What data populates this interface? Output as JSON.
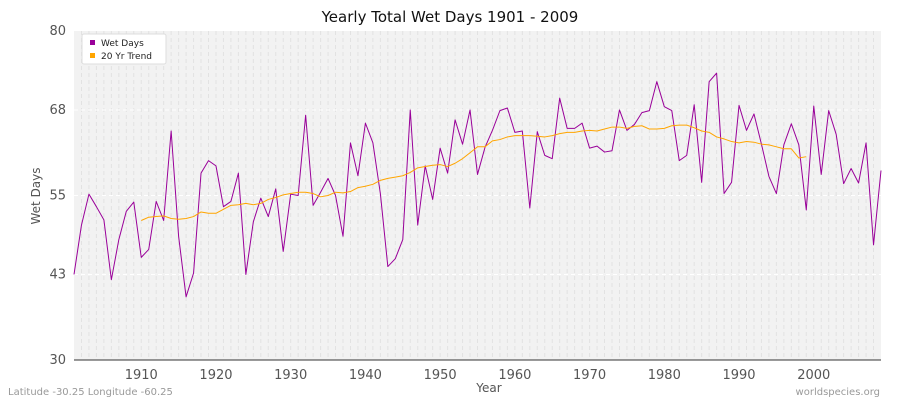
{
  "chart_data": {
    "type": "line",
    "title": "Yearly Total Wet Days 1901 - 2009",
    "xlabel": "Year",
    "ylabel": "Wet Days",
    "xlim": [
      1901,
      2009
    ],
    "ylim": [
      30,
      80
    ],
    "yticks": [
      30,
      43,
      55,
      68,
      80
    ],
    "xticks": [
      1910,
      1920,
      1930,
      1940,
      1950,
      1960,
      1970,
      1980,
      1990,
      2000
    ],
    "legend": "top-left",
    "series": [
      {
        "name": "Wet Days",
        "color": "#990099",
        "x_start": 1901,
        "values": [
          43,
          50.5,
          55.2,
          53.3,
          51.3,
          42.2,
          48.3,
          52.6,
          54,
          45.6,
          46.8,
          54.1,
          51.2,
          64.8,
          48.8,
          39.6,
          43.2,
          58.4,
          60.3,
          59.5,
          53.3,
          54.1,
          58.4,
          43,
          51,
          54.6,
          51.8,
          56,
          46.5,
          55.2,
          55,
          67.2,
          53.5,
          55.5,
          57.6,
          55,
          48.8,
          63,
          58,
          66,
          63,
          55.3,
          44.2,
          45.4,
          48.3,
          68,
          50.5,
          59.5,
          54.4,
          62.2,
          58.4,
          66.5,
          62.8,
          68,
          58.2,
          62.3,
          64.9,
          67.9,
          68.3,
          64.6,
          64.8,
          53.1,
          64.7,
          61.1,
          60.6,
          69.8,
          65.2,
          65.2,
          66,
          62.2,
          62.5,
          61.6,
          61.8,
          68,
          64.9,
          65.8,
          67.6,
          67.9,
          72.3,
          68.5,
          67.9,
          60.3,
          61.1,
          68.8,
          57,
          72.3,
          73.6,
          55.3,
          57,
          68.7,
          64.9,
          67.4,
          62.8,
          57.9,
          55.3,
          62.7,
          65.9,
          62.7,
          52.8,
          68.6,
          58.2,
          67.9,
          64.3,
          56.8,
          59.1,
          56.9,
          63,
          47.5,
          58.8
        ]
      },
      {
        "name": "20 Yr Trend",
        "color": "#FFA500",
        "x_start": 1910,
        "values": [
          51.2,
          51.7,
          51.8,
          51.9,
          51.5,
          51.4,
          51.5,
          51.8,
          52.5,
          52.3,
          52.3,
          52.9,
          53.5,
          53.6,
          53.8,
          53.6,
          53.8,
          54.4,
          54.7,
          55.1,
          55.3,
          55.5,
          55.5,
          55.3,
          54.8,
          55,
          55.5,
          55.4,
          55.6,
          56.2,
          56.4,
          56.7,
          57.3,
          57.6,
          57.8,
          58,
          58.5,
          59.2,
          59.4,
          59.6,
          59.7,
          59.4,
          59.9,
          60.6,
          61.5,
          62.4,
          62.4,
          63.3,
          63.5,
          63.9,
          64.1,
          64.1,
          64.1,
          64,
          63.9,
          64.1,
          64.4,
          64.6,
          64.6,
          64.8,
          64.9,
          64.8,
          65.1,
          65.4,
          65.4,
          65.2,
          65.5,
          65.6,
          65.1,
          65.1,
          65.2,
          65.6,
          65.7,
          65.7,
          65.3,
          64.8,
          64.6,
          63.9,
          63.6,
          63.2,
          63,
          63.2,
          63.1,
          62.8,
          62.7,
          62.4,
          62.1,
          62.1,
          60.7,
          60.9
        ]
      }
    ]
  },
  "footer": {
    "coords": "Latitude -30.25 Longitude -60.25",
    "source": "worldspecies.org"
  }
}
